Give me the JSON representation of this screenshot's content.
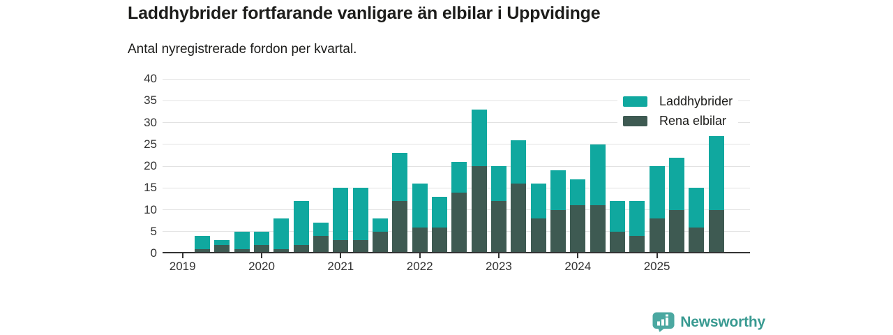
{
  "header": {
    "title": "Laddhybrider fortfarande vanligare än elbilar i Uppvidinge",
    "subtitle": "Antal nyregistrerade fordon per kvartal."
  },
  "chart_data": {
    "type": "bar",
    "stacked": true,
    "title": "Laddhybrider fortfarande vanligare än elbilar i Uppvidinge",
    "subtitle": "Antal nyregistrerade fordon per kvartal.",
    "xlabel": "",
    "ylabel": "",
    "ylim": [
      0,
      40
    ],
    "y_ticks": [
      0,
      5,
      10,
      15,
      20,
      25,
      30,
      35,
      40
    ],
    "grid": "horizontal",
    "legend_position": "top-right",
    "categories": [
      "2019 Q1",
      "2019 Q2",
      "2019 Q3",
      "2019 Q4",
      "2020 Q1",
      "2020 Q2",
      "2020 Q3",
      "2020 Q4",
      "2021 Q1",
      "2021 Q2",
      "2021 Q3",
      "2021 Q4",
      "2022 Q1",
      "2022 Q2",
      "2022 Q3",
      "2022 Q4",
      "2023 Q1",
      "2023 Q2",
      "2023 Q3",
      "2023 Q4",
      "2024 Q1",
      "2024 Q2",
      "2024 Q3",
      "2024 Q4",
      "2025 Q1",
      "2025 Q2",
      "2025 Q3",
      "2025 Q4"
    ],
    "x_tick_labels": [
      "2019",
      "2020",
      "2021",
      "2022",
      "2023",
      "2024",
      "2025"
    ],
    "x_ticks_every_n": 4,
    "stack_bottom_to_top": [
      "Rena elbilar",
      "Laddhybrider"
    ],
    "series": [
      {
        "name": "Laddhybrider",
        "color": "#10a89f",
        "values": [
          0,
          3,
          1,
          4,
          3,
          7,
          10,
          3,
          12,
          12,
          3,
          11,
          10,
          7,
          7,
          13,
          8,
          10,
          8,
          9,
          6,
          14,
          7,
          8,
          12,
          12,
          9,
          18
        ]
      },
      {
        "name": "Rena elbilar",
        "color": "#3e5a52",
        "values": [
          0,
          1,
          2,
          1,
          2,
          1,
          2,
          4,
          3,
          3,
          5,
          12,
          6,
          6,
          14,
          20,
          12,
          16,
          8,
          10,
          11,
          11,
          5,
          4,
          8,
          10,
          6,
          10
        ]
      }
    ],
    "stacked_totals": [
      0,
      4,
      3,
      5,
      5,
      8,
      12,
      7,
      15,
      15,
      8,
      23,
      16,
      13,
      21,
      33,
      20,
      26,
      16,
      19,
      17,
      25,
      12,
      12,
      20,
      22,
      15,
      28
    ]
  },
  "legend": {
    "items": [
      {
        "label": "Laddhybrider",
        "color": "#10a89f"
      },
      {
        "label": "Rena elbilar",
        "color": "#3e5a52"
      }
    ]
  },
  "footer": {
    "brand": "Newsworthy"
  },
  "colors": {
    "bar_teal": "#10a89f",
    "bar_dark": "#3e5a52",
    "gridline": "#e2e2e2",
    "axis": "#333333",
    "text": "#1d1d1b",
    "brand_text": "#399a91",
    "brand_icon": "#4ba8a1"
  }
}
